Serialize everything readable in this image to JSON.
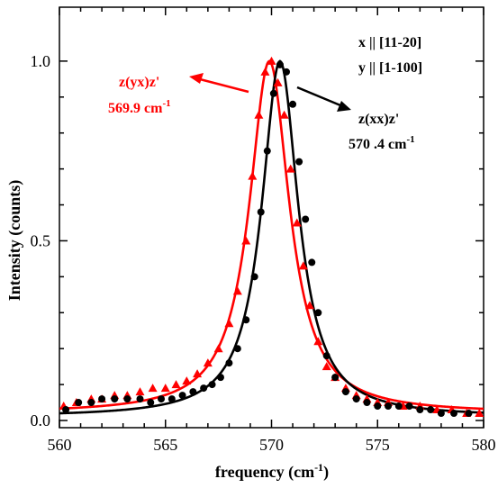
{
  "chart_data": {
    "type": "scatter",
    "xlabel": "frequency (cm",
    "xlabel_sup": "-1",
    "xlabel_close": ")",
    "ylabel": "Intensity (counts)",
    "xlim": [
      560,
      580
    ],
    "ylim": [
      -0.02,
      1.15
    ],
    "xticks": [
      560,
      565,
      570,
      575,
      580
    ],
    "xtick_labels": [
      "560",
      "565",
      "570",
      "575",
      "580"
    ],
    "yticks": [
      0.0,
      0.5,
      1.0
    ],
    "ytick_labels": [
      "0.0",
      "0.5",
      "1.0"
    ],
    "grid": false,
    "colors": {
      "red_series": "#ff0000",
      "black_series": "#000000"
    },
    "series": [
      {
        "name": "z(yx)z'",
        "peak_label": "569.9 cm",
        "peak_label_sup": "-1",
        "marker": "triangle",
        "color": "#ff0000",
        "fit": {
          "center": 569.9,
          "hwhm": 1.15,
          "baseline": 0.02,
          "amplitude": 0.98
        },
        "points": [
          [
            560.2,
            0.04
          ],
          [
            560.8,
            0.05
          ],
          [
            561.5,
            0.06
          ],
          [
            562.0,
            0.06
          ],
          [
            562.6,
            0.07
          ],
          [
            563.2,
            0.07
          ],
          [
            563.8,
            0.08
          ],
          [
            564.4,
            0.09
          ],
          [
            565.0,
            0.09
          ],
          [
            565.5,
            0.1
          ],
          [
            566.0,
            0.11
          ],
          [
            566.5,
            0.13
          ],
          [
            567.0,
            0.16
          ],
          [
            567.5,
            0.2
          ],
          [
            568.0,
            0.27
          ],
          [
            568.4,
            0.36
          ],
          [
            568.8,
            0.5
          ],
          [
            569.1,
            0.68
          ],
          [
            569.4,
            0.85
          ],
          [
            569.7,
            0.97
          ],
          [
            570.0,
            1.0
          ],
          [
            570.3,
            0.94
          ],
          [
            570.6,
            0.85
          ],
          [
            570.9,
            0.7
          ],
          [
            571.2,
            0.55
          ],
          [
            571.5,
            0.43
          ],
          [
            571.8,
            0.32
          ],
          [
            572.2,
            0.22
          ],
          [
            572.6,
            0.15
          ],
          [
            573.0,
            0.12
          ],
          [
            573.5,
            0.09
          ],
          [
            574.0,
            0.07
          ],
          [
            574.5,
            0.06
          ],
          [
            575.0,
            0.05
          ],
          [
            575.5,
            0.05
          ],
          [
            576.2,
            0.04
          ],
          [
            577.0,
            0.04
          ],
          [
            577.8,
            0.03
          ],
          [
            578.5,
            0.03
          ],
          [
            579.2,
            0.02
          ],
          [
            579.8,
            0.02
          ]
        ]
      },
      {
        "name": "z(xx)z'",
        "peak_label": "570 .4 cm",
        "peak_label_sup": "-1",
        "marker": "circle",
        "color": "#000000",
        "fit": {
          "center": 570.4,
          "hwhm": 1.05,
          "baseline": 0.01,
          "amplitude": 0.99
        },
        "points": [
          [
            560.3,
            0.03
          ],
          [
            560.9,
            0.05
          ],
          [
            561.5,
            0.05
          ],
          [
            562.0,
            0.06
          ],
          [
            562.6,
            0.06
          ],
          [
            563.2,
            0.06
          ],
          [
            563.8,
            0.06
          ],
          [
            564.3,
            0.05
          ],
          [
            564.8,
            0.06
          ],
          [
            565.3,
            0.06
          ],
          [
            565.8,
            0.07
          ],
          [
            566.3,
            0.08
          ],
          [
            566.8,
            0.09
          ],
          [
            567.2,
            0.1
          ],
          [
            567.6,
            0.12
          ],
          [
            568.0,
            0.16
          ],
          [
            568.4,
            0.2
          ],
          [
            568.8,
            0.28
          ],
          [
            569.2,
            0.4
          ],
          [
            569.5,
            0.58
          ],
          [
            569.8,
            0.75
          ],
          [
            570.1,
            0.91
          ],
          [
            570.4,
            0.99
          ],
          [
            570.7,
            0.97
          ],
          [
            571.0,
            0.88
          ],
          [
            571.3,
            0.72
          ],
          [
            571.6,
            0.56
          ],
          [
            571.9,
            0.44
          ],
          [
            572.2,
            0.3
          ],
          [
            572.6,
            0.18
          ],
          [
            573.0,
            0.12
          ],
          [
            573.5,
            0.08
          ],
          [
            574.0,
            0.06
          ],
          [
            574.5,
            0.05
          ],
          [
            575.0,
            0.04
          ],
          [
            575.5,
            0.04
          ],
          [
            576.0,
            0.04
          ],
          [
            576.5,
            0.04
          ],
          [
            577.0,
            0.03
          ],
          [
            577.5,
            0.03
          ],
          [
            578.0,
            0.02
          ],
          [
            578.6,
            0.02
          ],
          [
            579.3,
            0.02
          ]
        ]
      }
    ],
    "annotations": {
      "orientation_line1": "x || [11-20]",
      "orientation_line2": "y || [1-100]",
      "red_label_line1": "z(yx)z'",
      "black_label_line1": "z(xx)z'"
    }
  }
}
